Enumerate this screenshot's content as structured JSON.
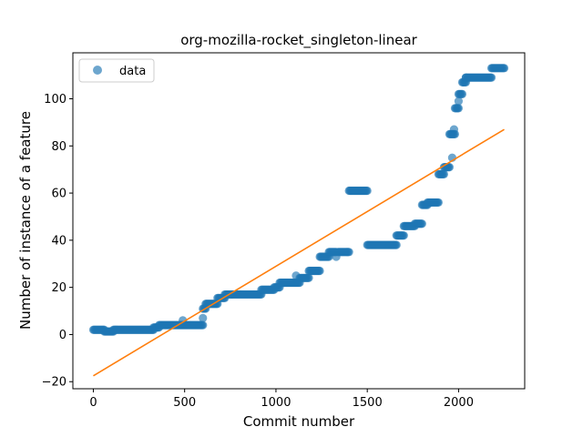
{
  "chart_data": {
    "type": "scatter",
    "title": "org-mozilla-rocket_singleton-linear",
    "xlabel": "Commit number",
    "ylabel": "Number of instance of a feature",
    "xlim": [
      -112,
      2362
    ],
    "ylim": [
      -23,
      119.5
    ],
    "xticks": [
      0,
      500,
      1000,
      1500,
      2000
    ],
    "yticks": [
      -20,
      0,
      20,
      40,
      60,
      80,
      100
    ],
    "grid": false,
    "legend_position": "top-left",
    "colors": {
      "data": "#1f77b4",
      "fit": "#ff7f0e"
    },
    "series": [
      {
        "name": "data",
        "kind": "scatter",
        "segments": [
          {
            "x0": 0,
            "x1": 60,
            "y": 2
          },
          {
            "x0": 60,
            "x1": 110,
            "y": 1.3
          },
          {
            "x0": 110,
            "x1": 330,
            "y": 2
          },
          {
            "x0": 330,
            "x1": 360,
            "y": 3
          },
          {
            "x0": 360,
            "x1": 600,
            "y": 4
          },
          {
            "x0": 600,
            "x1": 615,
            "y": 11
          },
          {
            "x0": 615,
            "x1": 680,
            "y": 13
          },
          {
            "x0": 680,
            "x1": 720,
            "y": 15.5
          },
          {
            "x0": 720,
            "x1": 920,
            "y": 17
          },
          {
            "x0": 920,
            "x1": 990,
            "y": 19
          },
          {
            "x0": 990,
            "x1": 1020,
            "y": 20
          },
          {
            "x0": 1020,
            "x1": 1130,
            "y": 22
          },
          {
            "x0": 1130,
            "x1": 1180,
            "y": 24
          },
          {
            "x0": 1180,
            "x1": 1240,
            "y": 27
          },
          {
            "x0": 1240,
            "x1": 1290,
            "y": 33
          },
          {
            "x0": 1290,
            "x1": 1330,
            "y": 35
          },
          {
            "x0": 1340,
            "x1": 1400,
            "y": 35
          },
          {
            "x0": 1400,
            "x1": 1500,
            "y": 61
          },
          {
            "x0": 1500,
            "x1": 1660,
            "y": 38
          },
          {
            "x0": 1660,
            "x1": 1700,
            "y": 42
          },
          {
            "x0": 1700,
            "x1": 1760,
            "y": 46
          },
          {
            "x0": 1760,
            "x1": 1800,
            "y": 47
          },
          {
            "x0": 1800,
            "x1": 1830,
            "y": 55
          },
          {
            "x0": 1830,
            "x1": 1890,
            "y": 56
          },
          {
            "x0": 1890,
            "x1": 1920,
            "y": 68
          },
          {
            "x0": 1920,
            "x1": 1950,
            "y": 71
          },
          {
            "x0": 1950,
            "x1": 1980,
            "y": 85
          },
          {
            "x0": 1980,
            "x1": 2000,
            "y": 96
          },
          {
            "x0": 2000,
            "x1": 2020,
            "y": 102
          },
          {
            "x0": 2020,
            "x1": 2040,
            "y": 107
          },
          {
            "x0": 2040,
            "x1": 2180,
            "y": 109
          },
          {
            "x0": 2180,
            "x1": 2250,
            "y": 113
          }
        ],
        "points": [
          {
            "x": 490,
            "y": 6
          },
          {
            "x": 600,
            "y": 7
          },
          {
            "x": 1110,
            "y": 25
          },
          {
            "x": 1330,
            "y": 33
          },
          {
            "x": 1965,
            "y": 75
          },
          {
            "x": 1975,
            "y": 87
          },
          {
            "x": 2000,
            "y": 99
          },
          {
            "x": 2040,
            "y": 109
          }
        ]
      },
      {
        "name": "",
        "kind": "line",
        "x": [
          0,
          2250
        ],
        "y": [
          -17.5,
          87
        ]
      }
    ]
  }
}
